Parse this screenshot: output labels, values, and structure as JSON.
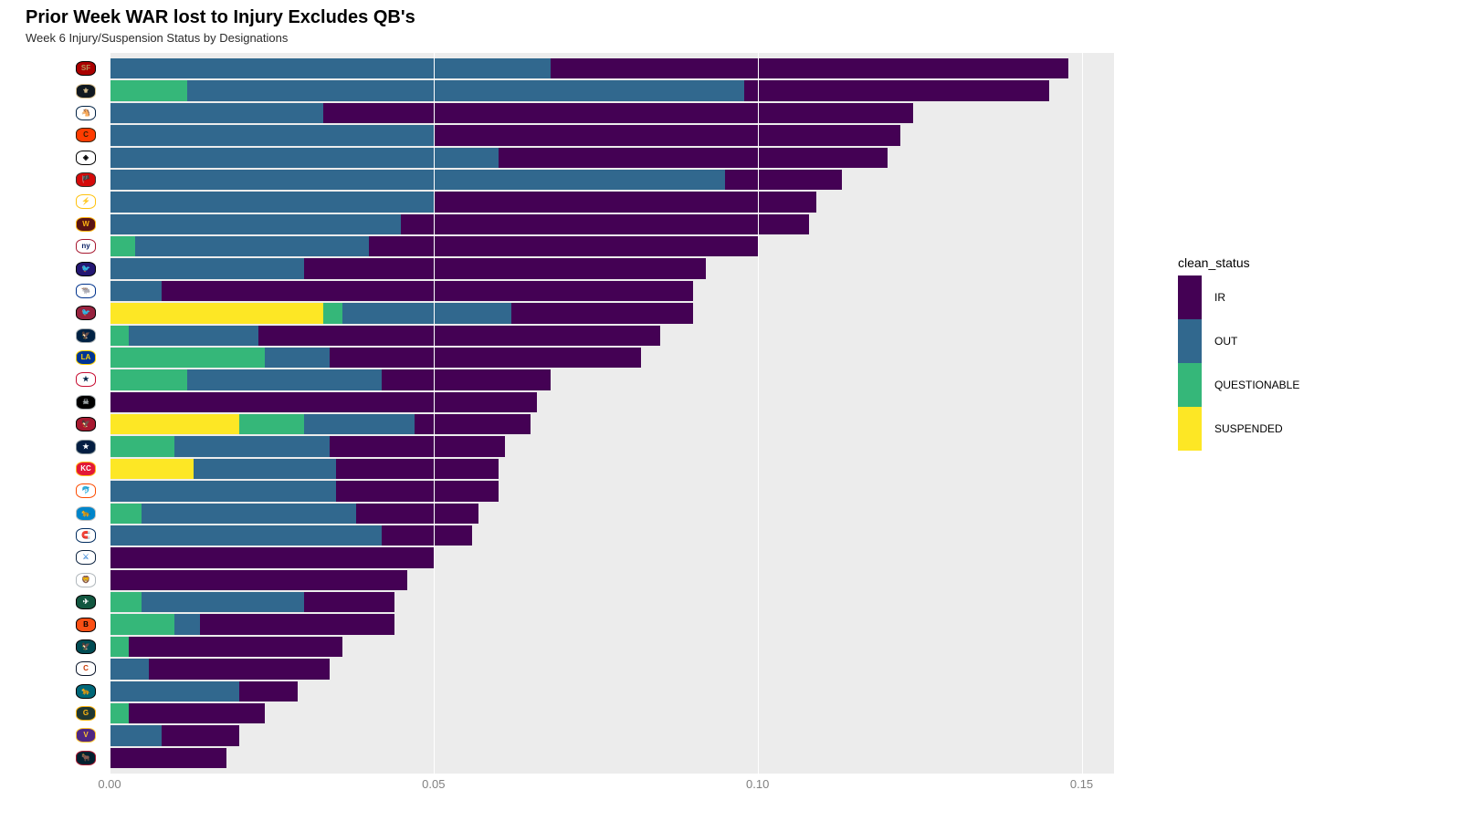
{
  "chart": {
    "type": "stacked-horizontal-bar",
    "title": "Prior Week WAR lost to Injury Excludes QB's",
    "subtitle": "Week 6 Injury/Suspension Status by Designations",
    "title_fontsize": 20,
    "subtitle_fontsize": 13,
    "background_color": "#ffffff",
    "panel_background": "#ececec",
    "grid_color": "#ffffff",
    "axis_text_color": "#808080",
    "x": {
      "min": 0.0,
      "max": 0.155,
      "ticks": [
        0.0,
        0.05,
        0.1,
        0.15
      ],
      "tick_labels": [
        "0.00",
        "0.05",
        "0.10",
        "0.15"
      ]
    },
    "legend": {
      "title": "clean_status",
      "items": [
        {
          "key": "IR",
          "label": "IR",
          "color": "#440154"
        },
        {
          "key": "OUT",
          "label": "OUT",
          "color": "#31688e"
        },
        {
          "key": "QUESTIONABLE",
          "label": "QUESTIONABLE",
          "color": "#35b779"
        },
        {
          "key": "SUSPENDED",
          "label": "SUSPENDED",
          "color": "#fde725"
        }
      ]
    },
    "status_colors": {
      "IR": "#440154",
      "OUT": "#31688e",
      "QUESTIONABLE": "#35b779",
      "SUSPENDED": "#fde725"
    },
    "teams": [
      {
        "abbr": "SF",
        "badge": {
          "bg": "#aa0000",
          "fg": "#b3995d",
          "txt": "SF",
          "border": "#000"
        },
        "values": {
          "SUSPENDED": 0,
          "QUESTIONABLE": 0,
          "OUT": 0.068,
          "IR": 0.08
        }
      },
      {
        "abbr": "NO",
        "badge": {
          "bg": "#101820",
          "fg": "#d3bc8d",
          "txt": "⚜",
          "border": "#d3bc8d"
        },
        "values": {
          "SUSPENDED": 0,
          "QUESTIONABLE": 0.012,
          "OUT": 0.086,
          "IR": 0.047
        }
      },
      {
        "abbr": "DEN",
        "badge": {
          "bg": "#ffffff",
          "fg": "#fb4f14",
          "txt": "🐴",
          "border": "#002244"
        },
        "values": {
          "SUSPENDED": 0,
          "QUESTIONABLE": 0,
          "OUT": 0.033,
          "IR": 0.091
        }
      },
      {
        "abbr": "CLE",
        "badge": {
          "bg": "#ff3c00",
          "fg": "#311d00",
          "txt": "C",
          "border": "#311d00"
        },
        "values": {
          "SUSPENDED": 0,
          "QUESTIONABLE": 0,
          "OUT": 0.05,
          "IR": 0.072
        }
      },
      {
        "abbr": "PIT",
        "badge": {
          "bg": "#ffffff",
          "fg": "#000000",
          "txt": "◈",
          "border": "#000"
        },
        "values": {
          "SUSPENDED": 0,
          "QUESTIONABLE": 0,
          "OUT": 0.06,
          "IR": 0.06
        }
      },
      {
        "abbr": "TB",
        "badge": {
          "bg": "#d50a0a",
          "fg": "#ffffff",
          "txt": "🏴",
          "border": "#34302b"
        },
        "values": {
          "SUSPENDED": 0,
          "QUESTIONABLE": 0,
          "OUT": 0.095,
          "IR": 0.018
        }
      },
      {
        "abbr": "LAC",
        "badge": {
          "bg": "#ffffff",
          "fg": "#0080c6",
          "txt": "⚡",
          "border": "#ffc20e"
        },
        "values": {
          "SUSPENDED": 0,
          "QUESTIONABLE": 0,
          "OUT": 0.05,
          "IR": 0.059
        }
      },
      {
        "abbr": "WAS",
        "badge": {
          "bg": "#5a1414",
          "fg": "#ffb612",
          "txt": "W",
          "border": "#ffb612"
        },
        "values": {
          "SUSPENDED": 0,
          "QUESTIONABLE": 0,
          "OUT": 0.045,
          "IR": 0.063
        }
      },
      {
        "abbr": "NYG",
        "badge": {
          "bg": "#ffffff",
          "fg": "#0b2265",
          "txt": "ny",
          "border": "#a71930"
        },
        "values": {
          "SUSPENDED": 0,
          "QUESTIONABLE": 0.004,
          "OUT": 0.036,
          "IR": 0.06
        }
      },
      {
        "abbr": "BAL",
        "badge": {
          "bg": "#241773",
          "fg": "#9e7c0c",
          "txt": "🐦",
          "border": "#000"
        },
        "values": {
          "SUSPENDED": 0,
          "QUESTIONABLE": 0,
          "OUT": 0.03,
          "IR": 0.062
        }
      },
      {
        "abbr": "BUF",
        "badge": {
          "bg": "#ffffff",
          "fg": "#c60c30",
          "txt": "🐃",
          "border": "#00338d"
        },
        "values": {
          "SUSPENDED": 0,
          "QUESTIONABLE": 0,
          "OUT": 0.008,
          "IR": 0.082
        }
      },
      {
        "abbr": "ARI",
        "badge": {
          "bg": "#97233f",
          "fg": "#ffffff",
          "txt": "🐦",
          "border": "#000"
        },
        "values": {
          "SUSPENDED": 0.033,
          "QUESTIONABLE": 0.003,
          "OUT": 0.026,
          "IR": 0.028
        }
      },
      {
        "abbr": "SEA",
        "badge": {
          "bg": "#002244",
          "fg": "#69be28",
          "txt": "🦅",
          "border": "#a5acaf"
        },
        "values": {
          "SUSPENDED": 0,
          "QUESTIONABLE": 0.003,
          "OUT": 0.02,
          "IR": 0.062
        }
      },
      {
        "abbr": "LAR",
        "badge": {
          "bg": "#003594",
          "fg": "#ffd100",
          "txt": "LA",
          "border": "#ffd100"
        },
        "values": {
          "SUSPENDED": 0,
          "QUESTIONABLE": 0.024,
          "OUT": 0.01,
          "IR": 0.048
        }
      },
      {
        "abbr": "NE",
        "badge": {
          "bg": "#ffffff",
          "fg": "#002244",
          "txt": "★",
          "border": "#c60c30"
        },
        "values": {
          "SUSPENDED": 0,
          "QUESTIONABLE": 0.012,
          "OUT": 0.03,
          "IR": 0.026
        }
      },
      {
        "abbr": "LV",
        "badge": {
          "bg": "#000000",
          "fg": "#a5acaf",
          "txt": "☠",
          "border": "#a5acaf"
        },
        "values": {
          "SUSPENDED": 0,
          "QUESTIONABLE": 0,
          "OUT": 0,
          "IR": 0.066
        }
      },
      {
        "abbr": "ATL",
        "badge": {
          "bg": "#a71930",
          "fg": "#000000",
          "txt": "🦅",
          "border": "#000"
        },
        "values": {
          "SUSPENDED": 0.02,
          "QUESTIONABLE": 0.01,
          "OUT": 0.017,
          "IR": 0.018
        }
      },
      {
        "abbr": "DAL",
        "badge": {
          "bg": "#041e42",
          "fg": "#ffffff",
          "txt": "★",
          "border": "#869397"
        },
        "values": {
          "SUSPENDED": 0,
          "QUESTIONABLE": 0.01,
          "OUT": 0.024,
          "IR": 0.027
        }
      },
      {
        "abbr": "KC",
        "badge": {
          "bg": "#e31837",
          "fg": "#ffffff",
          "txt": "KC",
          "border": "#ffb81c"
        },
        "values": {
          "SUSPENDED": 0.013,
          "QUESTIONABLE": 0,
          "OUT": 0.022,
          "IR": 0.025
        }
      },
      {
        "abbr": "MIA",
        "badge": {
          "bg": "#ffffff",
          "fg": "#008e97",
          "txt": "🐬",
          "border": "#fc4c02"
        },
        "values": {
          "SUSPENDED": 0,
          "QUESTIONABLE": 0,
          "OUT": 0.035,
          "IR": 0.025
        }
      },
      {
        "abbr": "CAR",
        "badge": {
          "bg": "#0085ca",
          "fg": "#000000",
          "txt": "🐆",
          "border": "#bfc0bf"
        },
        "values": {
          "SUSPENDED": 0,
          "QUESTIONABLE": 0.005,
          "OUT": 0.033,
          "IR": 0.019
        }
      },
      {
        "abbr": "IND",
        "badge": {
          "bg": "#ffffff",
          "fg": "#002c5f",
          "txt": "🧲",
          "border": "#002c5f"
        },
        "values": {
          "SUSPENDED": 0,
          "QUESTIONABLE": 0,
          "OUT": 0.042,
          "IR": 0.014
        }
      },
      {
        "abbr": "TEN",
        "badge": {
          "bg": "#ffffff",
          "fg": "#4b92db",
          "txt": "⚔",
          "border": "#0c2340"
        },
        "values": {
          "SUSPENDED": 0,
          "QUESTIONABLE": 0,
          "OUT": 0,
          "IR": 0.05
        }
      },
      {
        "abbr": "DET",
        "badge": {
          "bg": "#ffffff",
          "fg": "#0076b6",
          "txt": "🦁",
          "border": "#b0b7bc"
        },
        "values": {
          "SUSPENDED": 0,
          "QUESTIONABLE": 0,
          "OUT": 0,
          "IR": 0.046
        }
      },
      {
        "abbr": "NYJ",
        "badge": {
          "bg": "#125740",
          "fg": "#ffffff",
          "txt": "✈",
          "border": "#000"
        },
        "values": {
          "SUSPENDED": 0,
          "QUESTIONABLE": 0.005,
          "OUT": 0.025,
          "IR": 0.014
        }
      },
      {
        "abbr": "CIN",
        "badge": {
          "bg": "#fb4f14",
          "fg": "#000000",
          "txt": "B",
          "border": "#000"
        },
        "values": {
          "SUSPENDED": 0,
          "QUESTIONABLE": 0.01,
          "OUT": 0.004,
          "IR": 0.03
        }
      },
      {
        "abbr": "PHI",
        "badge": {
          "bg": "#004c54",
          "fg": "#a5acaf",
          "txt": "🦅",
          "border": "#000"
        },
        "values": {
          "SUSPENDED": 0,
          "QUESTIONABLE": 0.003,
          "OUT": 0,
          "IR": 0.033
        }
      },
      {
        "abbr": "CHI",
        "badge": {
          "bg": "#ffffff",
          "fg": "#c83803",
          "txt": "C",
          "border": "#0b162a"
        },
        "values": {
          "SUSPENDED": 0,
          "QUESTIONABLE": 0,
          "OUT": 0.006,
          "IR": 0.028
        }
      },
      {
        "abbr": "JAX",
        "badge": {
          "bg": "#006778",
          "fg": "#d7a22a",
          "txt": "🐆",
          "border": "#000"
        },
        "values": {
          "SUSPENDED": 0,
          "QUESTIONABLE": 0,
          "OUT": 0.02,
          "IR": 0.009
        }
      },
      {
        "abbr": "GB",
        "badge": {
          "bg": "#203731",
          "fg": "#ffb612",
          "txt": "G",
          "border": "#ffb612"
        },
        "values": {
          "SUSPENDED": 0,
          "QUESTIONABLE": 0.003,
          "OUT": 0,
          "IR": 0.021
        }
      },
      {
        "abbr": "MIN",
        "badge": {
          "bg": "#4f2683",
          "fg": "#ffc62f",
          "txt": "V",
          "border": "#ffc62f"
        },
        "values": {
          "SUSPENDED": 0,
          "QUESTIONABLE": 0,
          "OUT": 0.008,
          "IR": 0.012
        }
      },
      {
        "abbr": "HOU",
        "badge": {
          "bg": "#03202f",
          "fg": "#a71930",
          "txt": "🐂",
          "border": "#a71930"
        },
        "values": {
          "SUSPENDED": 0,
          "QUESTIONABLE": 0,
          "OUT": 0,
          "IR": 0.018
        }
      }
    ]
  }
}
